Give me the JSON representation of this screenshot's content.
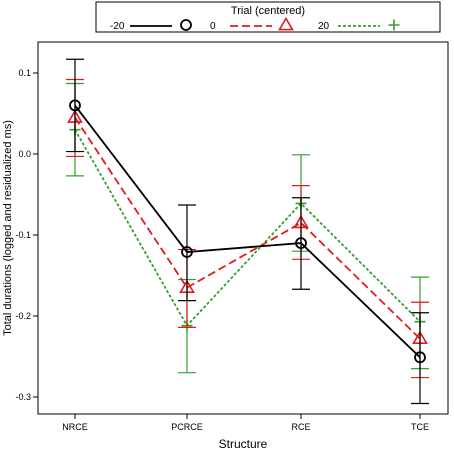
{
  "chart_data": {
    "type": "line",
    "xlabel": "Structure",
    "ylabel": "Total durations (logged and residualized ms)",
    "legend_title": "Trial (centered)",
    "legend_placement": "top",
    "categories": [
      "NRCE",
      "PCRCE",
      "RCE",
      "TCE"
    ],
    "ylim": [
      -0.32,
      0.14
    ],
    "yticks": [
      0.1,
      0.0,
      -0.1,
      -0.2,
      -0.3
    ],
    "ytick_labels": [
      "0.1",
      "0.0",
      "-0.1",
      "-0.2",
      "-0.3"
    ],
    "grid": false,
    "series": [
      {
        "name": "-20",
        "color": "#000000",
        "dash": "solid",
        "marker": "circle",
        "values": [
          0.06,
          -0.121,
          -0.11,
          -0.251
        ],
        "err_low": [
          0.003,
          -0.181,
          -0.167,
          -0.308
        ],
        "err_high": [
          0.117,
          -0.063,
          -0.054,
          -0.196
        ]
      },
      {
        "name": "0",
        "color": "#e31a1c",
        "dash": "dashed",
        "marker": "triangle",
        "values": [
          0.045,
          -0.165,
          -0.085,
          -0.228
        ],
        "err_low": [
          -0.003,
          -0.214,
          -0.13,
          -0.276
        ],
        "err_high": [
          0.092,
          -0.118,
          -0.039,
          -0.183
        ]
      },
      {
        "name": "20",
        "color": "#33a02c",
        "dash": "dotted",
        "marker": "plus",
        "values": [
          0.03,
          -0.212,
          -0.061,
          -0.207
        ],
        "err_low": [
          -0.027,
          -0.27,
          -0.12,
          -0.265
        ],
        "err_high": [
          0.087,
          -0.155,
          -0.001,
          -0.152
        ]
      }
    ]
  }
}
